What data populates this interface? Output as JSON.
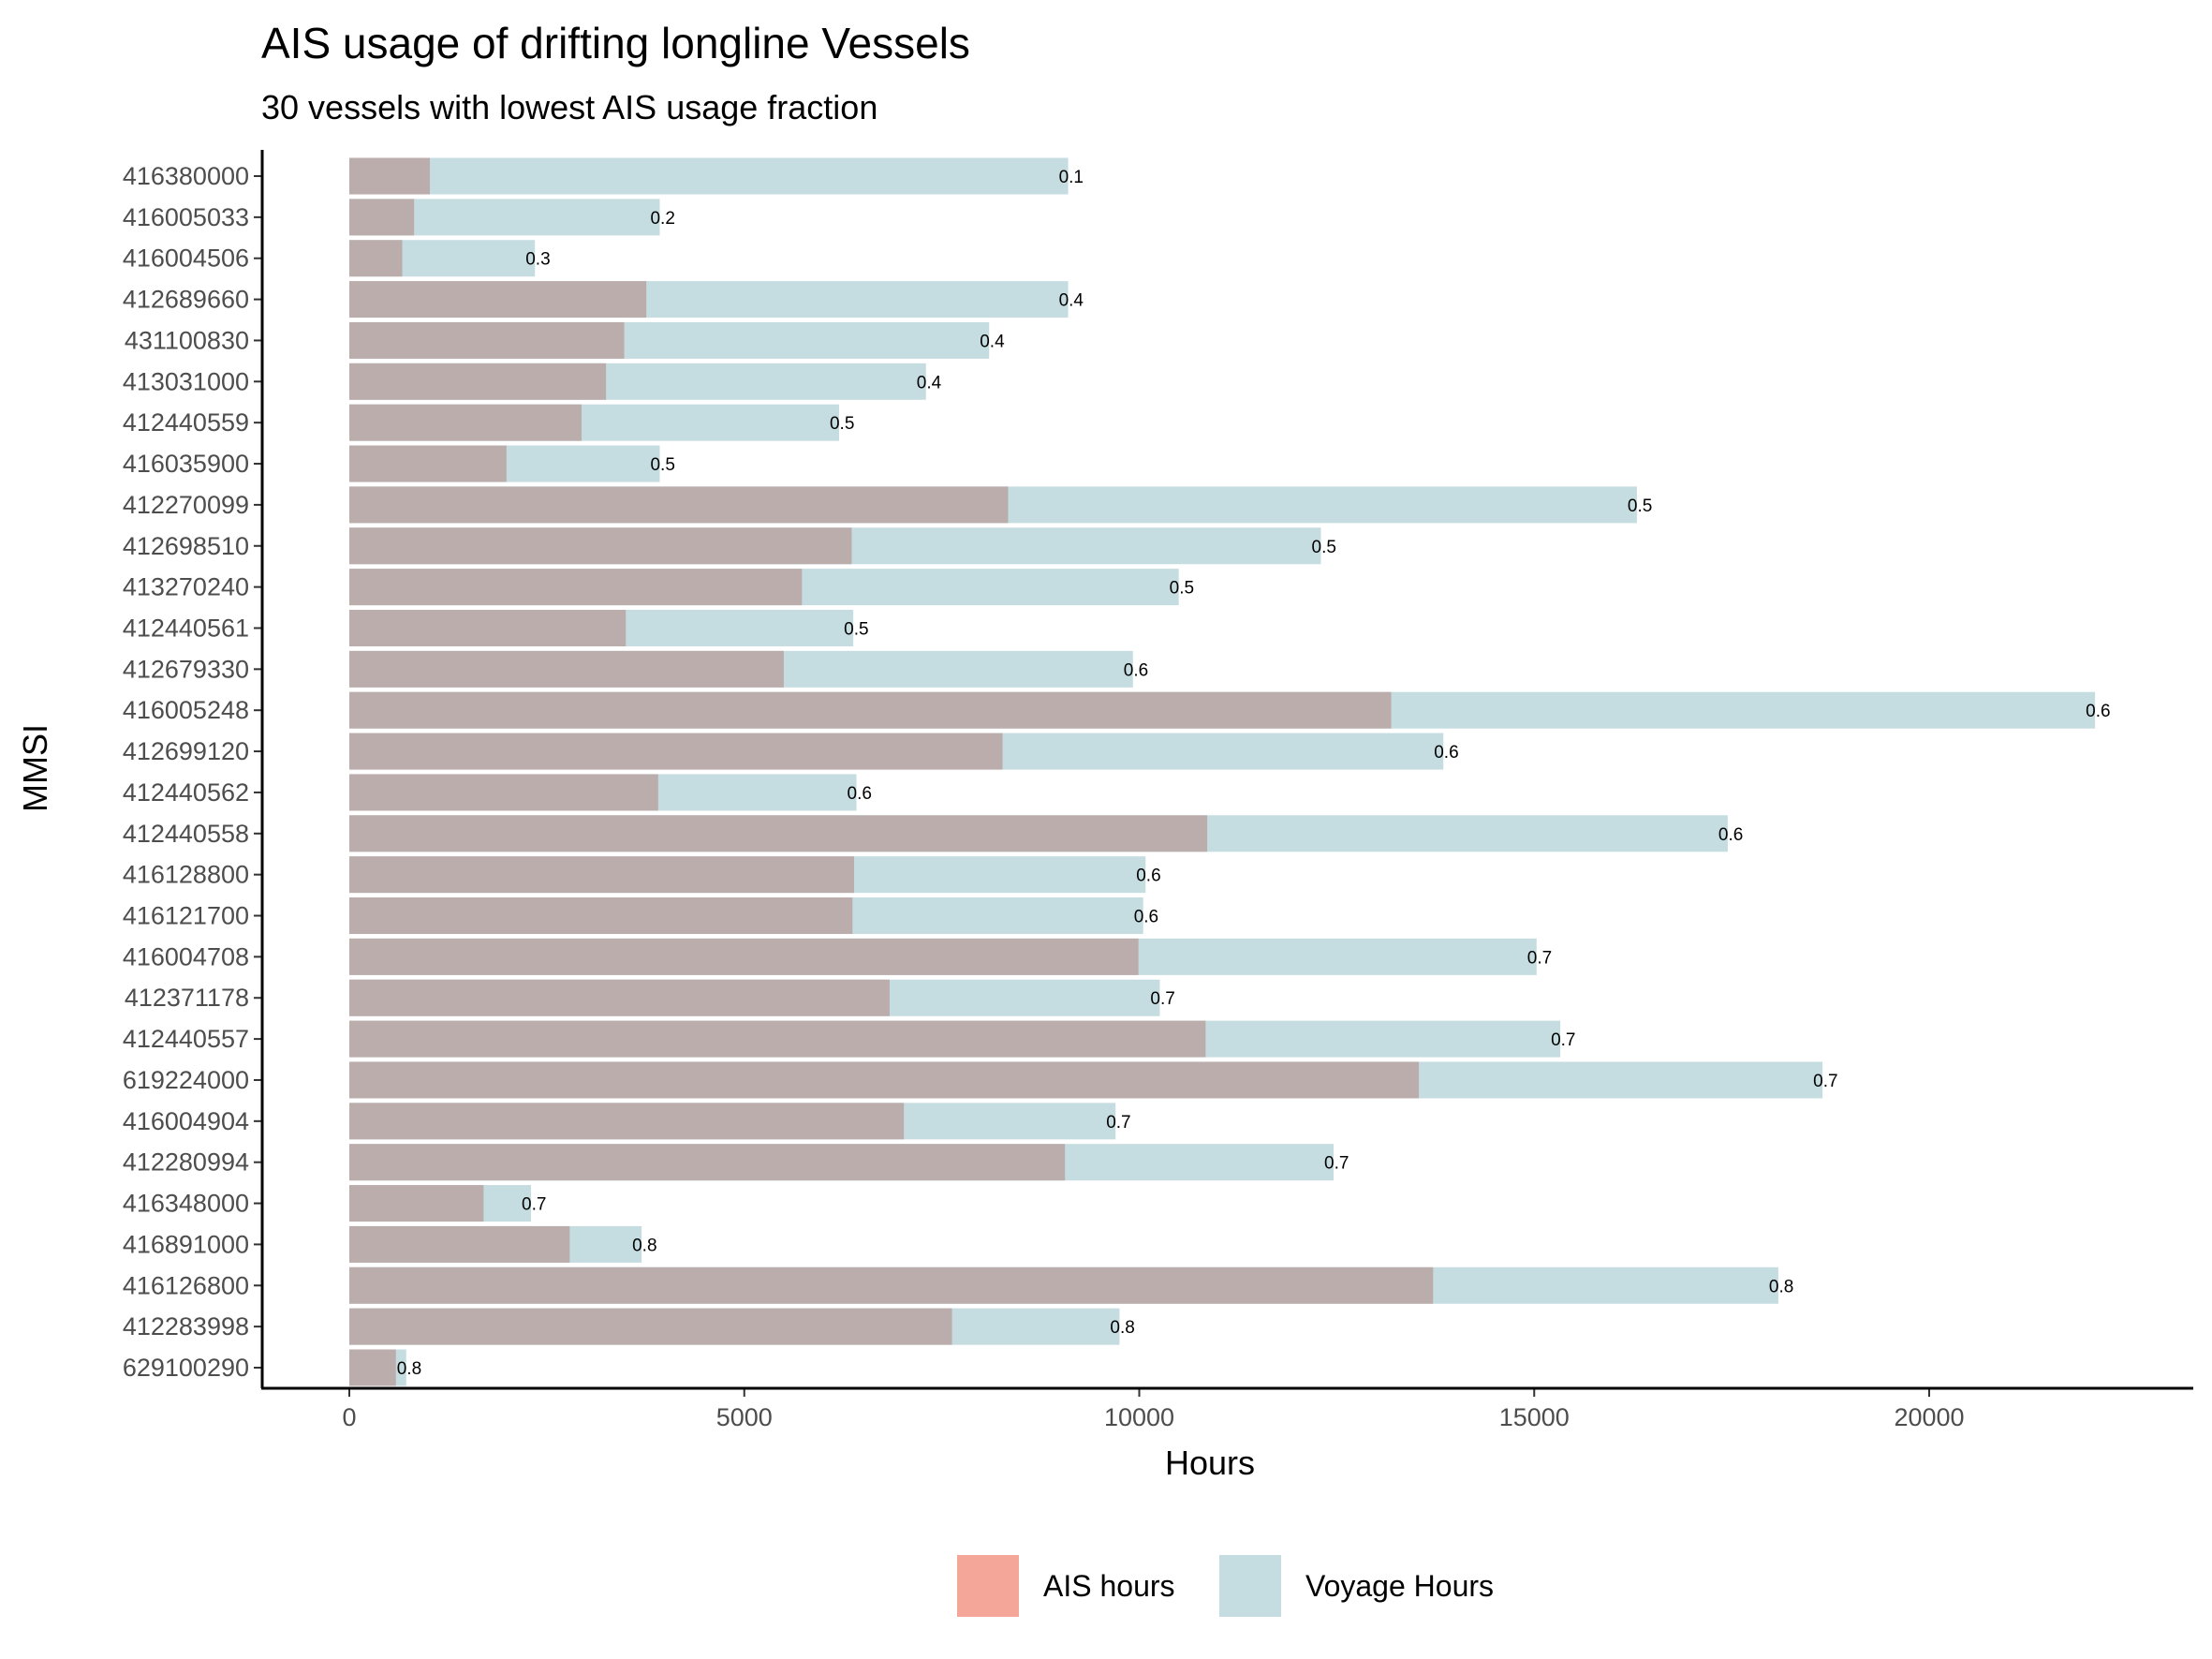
{
  "chart_data": {
    "type": "bar",
    "orientation": "horizontal",
    "title": "AIS usage of drifting longline Vessels",
    "subtitle": "30 vessels with lowest AIS usage fraction",
    "xlabel": "Hours",
    "ylabel": "MMSI",
    "xlim": [
      -1100,
      23000
    ],
    "xticks": [
      0,
      5000,
      10000,
      15000,
      20000
    ],
    "xtick_labels": [
      "0",
      "5000",
      "10000",
      "15000",
      "20000"
    ],
    "grid": false,
    "legend_position": "bottom",
    "categories": [
      "416380000",
      "416005033",
      "416004506",
      "412689660",
      "431100830",
      "413031000",
      "412440559",
      "416035900",
      "412270099",
      "412698510",
      "413270240",
      "412440561",
      "412679330",
      "416005248",
      "412699120",
      "412440562",
      "412440558",
      "416128800",
      "416121700",
      "416004708",
      "412371178",
      "412440557",
      "619224000",
      "416004904",
      "412280994",
      "416348000",
      "416891000",
      "416126800",
      "412283998",
      "629100290"
    ],
    "series": [
      {
        "name": "AIS hours",
        "color": "#F4A698",
        "overlap_color": "#BCADAD",
        "values": [
          1020,
          820,
          670,
          3760,
          3480,
          3250,
          2940,
          1990,
          8340,
          6360,
          5730,
          3500,
          5500,
          13190,
          8270,
          3910,
          10860,
          6390,
          6370,
          9990,
          6840,
          10840,
          13540,
          7020,
          9060,
          1700,
          2790,
          13720,
          7630,
          590
        ]
      },
      {
        "name": "Voyage Hours",
        "color": "#C5DDE1",
        "values": [
          9100,
          3930,
          2350,
          9100,
          8100,
          7300,
          6200,
          3930,
          16300,
          12300,
          10500,
          6380,
          9920,
          22100,
          13850,
          6420,
          17450,
          10080,
          10050,
          15030,
          10260,
          15330,
          18650,
          9700,
          12460,
          2300,
          3700,
          18090,
          9750,
          720
        ]
      }
    ],
    "bar_labels": [
      "0.1",
      "0.2",
      "0.3",
      "0.4",
      "0.4",
      "0.4",
      "0.5",
      "0.5",
      "0.5",
      "0.5",
      "0.5",
      "0.5",
      "0.6",
      "0.6",
      "0.6",
      "0.6",
      "0.6",
      "0.6",
      "0.6",
      "0.7",
      "0.7",
      "0.7",
      "0.7",
      "0.7",
      "0.7",
      "0.7",
      "0.8",
      "0.8",
      "0.8",
      "0.8"
    ]
  }
}
